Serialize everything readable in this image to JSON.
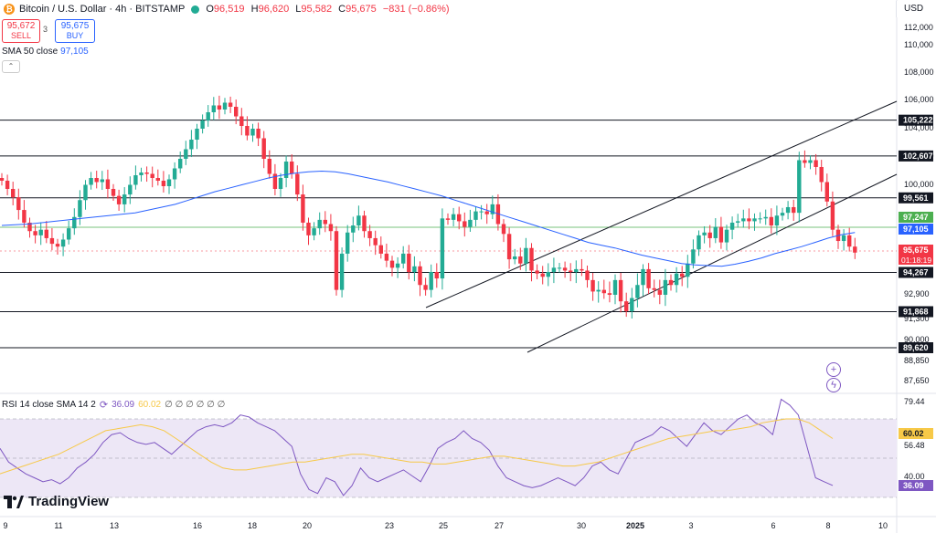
{
  "header": {
    "symbol": "Bitcoin / U.S. Dollar · 4h · BITSTAMP",
    "icon": "bitcoin-icon",
    "ohlc": [
      {
        "k": "O",
        "v": "96,519"
      },
      {
        "k": "H",
        "v": "96,620"
      },
      {
        "k": "L",
        "v": "95,582"
      },
      {
        "k": "C",
        "v": "95,675"
      }
    ],
    "change": "−831 (−0.86%)",
    "currency": "USD"
  },
  "trade": {
    "sell_price": "95,672",
    "sell_label": "SELL",
    "spread": "3",
    "buy_price": "95,675",
    "buy_label": "BUY"
  },
  "sma_legend": {
    "label": "SMA 50 close",
    "value": "97,105"
  },
  "rsi_legend": {
    "label": "RSI 14 close SMA 14 2",
    "rsi": "36.09",
    "sma": "60.02",
    "rest": "∅ ∅ ∅ ∅ ∅ ∅"
  },
  "branding": {
    "name": "TradingView"
  },
  "colors": {
    "up": "#22ab94",
    "down": "#f23645",
    "sma": "#2962ff",
    "rsi": "#7e57c2",
    "rsi_sma": "#f7c948",
    "rsi_band": "#ede7f6"
  },
  "chart_data": [
    {
      "type": "candlestick",
      "title": "Bitcoin / U.S. Dollar · 4h · BITSTAMP",
      "ylim": [
        88000,
        112000
      ],
      "y_ticks": [
        "112,000",
        "110,000",
        "108,000",
        "106,000",
        "104,000",
        "102,000",
        "100,000",
        "92,900",
        "91,300",
        "90,000",
        "88,850",
        "87,650"
      ],
      "x_ticks": [
        "9",
        "11",
        "13",
        "16",
        "18",
        "20",
        "23",
        "25",
        "27",
        "30",
        "2025",
        "3",
        "6",
        "8",
        "10"
      ],
      "closes": [
        100800,
        100200,
        99600,
        98700,
        97800,
        97200,
        96900,
        97300,
        96700,
        96300,
        96100,
        96600,
        97400,
        98200,
        99400,
        100500,
        101000,
        100700,
        100900,
        100200,
        99700,
        99100,
        99800,
        100500,
        101200,
        101400,
        101300,
        101000,
        100800,
        100400,
        100900,
        101700,
        102400,
        103100,
        103800,
        104600,
        105200,
        105800,
        106300,
        106000,
        106500,
        106200,
        105500,
        104800,
        104100,
        104600,
        103900,
        102400,
        101300,
        100200,
        101000,
        102200,
        101300,
        99800,
        97800,
        96900,
        97400,
        98000,
        97700,
        97200,
        93200,
        95600,
        97100,
        97600,
        98300,
        97200,
        96700,
        96200,
        95600,
        95100,
        94600,
        94900,
        95600,
        94300,
        94700,
        93500,
        93200,
        94300,
        93900,
        98100,
        98000,
        98400,
        97900,
        97500,
        98000,
        98600,
        98600,
        98400,
        99100,
        97700,
        97000,
        95200,
        95400,
        94900,
        96000,
        94400,
        94200,
        94000,
        94300,
        94600,
        94600,
        94400,
        94300,
        94500,
        94400,
        93800,
        93100,
        93200,
        93000,
        92900,
        93800,
        92500,
        91900,
        92700,
        93500,
        94500,
        93300,
        93200,
        92900,
        93800,
        93500,
        94200,
        94000,
        94900,
        95900,
        96900,
        97100,
        96700,
        97500,
        96400,
        97300,
        97800,
        97900,
        98100,
        97900,
        98100,
        98100,
        98200,
        97600,
        98300,
        98500,
        98900,
        98500,
        102300,
        102100,
        102300,
        101800,
        100700,
        99300,
        97300,
        96500,
        96900,
        96100,
        95675
      ],
      "series": [
        {
          "name": "SMA 50 close",
          "last": 97105,
          "values": [
            97600,
            97650,
            97700,
            97800,
            97900,
            98000,
            98100,
            98200,
            98300,
            98400,
            98500,
            98700,
            98900,
            99100,
            99400,
            99700,
            100000,
            100250,
            100500,
            100750,
            101000,
            101200,
            101350,
            101450,
            101500,
            101450,
            101300,
            101100,
            100900,
            100700,
            100450,
            100200,
            99950,
            99700,
            99400,
            99100,
            98800,
            98500,
            98200,
            97900,
            97600,
            97300,
            97000,
            96700,
            96400,
            96200,
            96000,
            95750,
            95500,
            95300,
            95100,
            94900,
            94800,
            94750,
            94700,
            94850,
            95050,
            95300,
            95600,
            95850,
            96100,
            96400,
            96700,
            96950,
            97105
          ]
        }
      ],
      "levels": [
        {
          "value": 105222,
          "label": "105,222"
        },
        {
          "value": 102607,
          "label": "102,607"
        },
        {
          "value": 99561,
          "label": "99,561"
        },
        {
          "value": 94267,
          "label": "94,267"
        },
        {
          "value": 91868,
          "label": "91,868"
        },
        {
          "value": 89620,
          "label": "89,620"
        }
      ],
      "markers": [
        {
          "label": "97,247",
          "kind": "green"
        },
        {
          "label": "97,105",
          "kind": "blue"
        },
        {
          "label": "95,675",
          "sublabel": "01:18:19",
          "kind": "red"
        }
      ]
    },
    {
      "type": "line",
      "title": "RSI 14 close SMA 14 2",
      "y_ticks": [
        "79.44",
        "56.48",
        "40.00"
      ],
      "band": [
        30,
        70
      ],
      "series": [
        {
          "name": "RSI",
          "last": 36.09,
          "values": [
            55,
            48,
            45,
            42,
            40,
            38,
            39,
            37,
            40,
            45,
            48,
            52,
            58,
            62,
            63,
            60,
            58,
            57,
            58,
            55,
            52,
            56,
            60,
            64,
            66,
            67,
            66,
            68,
            72,
            71,
            68,
            66,
            64,
            60,
            56,
            42,
            34,
            32,
            40,
            38,
            31,
            36,
            45,
            40,
            38,
            40,
            42,
            44,
            41,
            38,
            46,
            55,
            58,
            60,
            64,
            60,
            58,
            54,
            46,
            40,
            38,
            36,
            35,
            36,
            38,
            40,
            38,
            36,
            40,
            46,
            48,
            44,
            42,
            50,
            58,
            60,
            62,
            66,
            64,
            60,
            56,
            62,
            68,
            64,
            62,
            66,
            70,
            72,
            68,
            66,
            62,
            80,
            77,
            72,
            56,
            40,
            38,
            36.09
          ]
        },
        {
          "name": "SMA",
          "last": 60.02,
          "values": [
            42,
            44,
            46,
            48,
            50,
            52,
            55,
            58,
            61,
            64,
            65,
            66,
            67,
            66,
            64,
            60,
            56,
            52,
            48,
            45,
            44,
            44,
            45,
            46,
            47,
            48,
            48,
            49,
            50,
            51,
            52,
            52,
            51,
            50,
            49,
            48,
            48,
            47,
            47,
            48,
            49,
            50,
            51,
            51,
            50,
            49,
            48,
            47,
            46,
            46,
            47,
            48,
            50,
            52,
            54,
            56,
            58,
            60,
            61,
            62,
            63,
            64,
            64,
            65,
            66,
            68,
            69,
            70,
            70,
            68,
            64,
            60.02
          ]
        }
      ],
      "markers": [
        {
          "label": "60.02",
          "kind": "yellow"
        },
        {
          "label": "36.09",
          "kind": "purple"
        }
      ]
    }
  ]
}
